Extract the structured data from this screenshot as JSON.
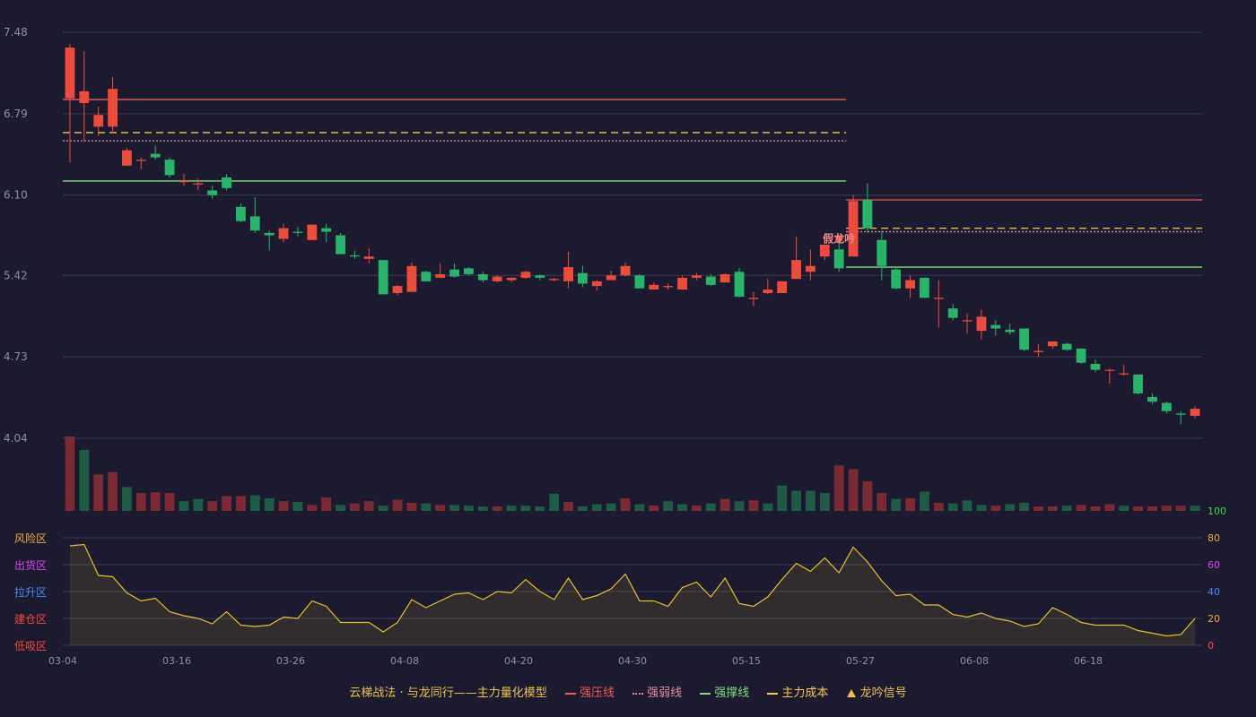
{
  "chart_data": {
    "type": "candlestick",
    "x_ticks": [
      "03-04",
      "03-16",
      "03-26",
      "04-08",
      "04-20",
      "04-30",
      "05-15",
      "05-27",
      "06-08",
      "06-18"
    ],
    "y_ticks": [
      "7.48",
      "6.79",
      "6.10",
      "5.42",
      "4.73",
      "4.04"
    ],
    "y_range": [
      4.04,
      7.48
    ],
    "colors": {
      "up": "#ef4b3c",
      "down": "#27b56b",
      "background": "#1b1a2e",
      "grid": "#3a3b52",
      "axis_text": "#8c8fa3",
      "line_yellow": "#e3c12f"
    },
    "candles": [
      {
        "o": 6.92,
        "h": 7.38,
        "l": 6.38,
        "c": 7.35
      },
      {
        "o": 6.88,
        "h": 7.32,
        "l": 6.55,
        "c": 6.98
      },
      {
        "o": 6.68,
        "h": 6.85,
        "l": 6.6,
        "c": 6.78
      },
      {
        "o": 6.68,
        "h": 7.1,
        "l": 6.62,
        "c": 7.0
      },
      {
        "o": 6.35,
        "h": 6.5,
        "l": 6.35,
        "c": 6.48
      },
      {
        "o": 6.39,
        "h": 6.42,
        "l": 6.32,
        "c": 6.4
      },
      {
        "o": 6.45,
        "h": 6.52,
        "l": 6.4,
        "c": 6.42
      },
      {
        "o": 6.4,
        "h": 6.42,
        "l": 6.25,
        "c": 6.27
      },
      {
        "o": 6.21,
        "h": 6.28,
        "l": 6.18,
        "c": 6.22
      },
      {
        "o": 6.19,
        "h": 6.24,
        "l": 6.14,
        "c": 6.2
      },
      {
        "o": 6.14,
        "h": 6.18,
        "l": 6.07,
        "c": 6.1
      },
      {
        "o": 6.25,
        "h": 6.28,
        "l": 6.14,
        "c": 6.16
      },
      {
        "o": 6.0,
        "h": 6.03,
        "l": 5.87,
        "c": 5.88
      },
      {
        "o": 5.92,
        "h": 6.08,
        "l": 5.78,
        "c": 5.8
      },
      {
        "o": 5.78,
        "h": 5.8,
        "l": 5.63,
        "c": 5.76
      },
      {
        "o": 5.73,
        "h": 5.86,
        "l": 5.7,
        "c": 5.82
      },
      {
        "o": 5.79,
        "h": 5.83,
        "l": 5.75,
        "c": 5.78
      },
      {
        "o": 5.72,
        "h": 5.85,
        "l": 5.72,
        "c": 5.85
      },
      {
        "o": 5.82,
        "h": 5.86,
        "l": 5.7,
        "c": 5.79
      },
      {
        "o": 5.76,
        "h": 5.78,
        "l": 5.6,
        "c": 5.6
      },
      {
        "o": 5.59,
        "h": 5.63,
        "l": 5.56,
        "c": 5.58
      },
      {
        "o": 5.56,
        "h": 5.65,
        "l": 5.52,
        "c": 5.58
      },
      {
        "o": 5.55,
        "h": 5.55,
        "l": 5.26,
        "c": 5.26
      },
      {
        "o": 5.27,
        "h": 5.34,
        "l": 5.25,
        "c": 5.33
      },
      {
        "o": 5.28,
        "h": 5.53,
        "l": 5.28,
        "c": 5.5
      },
      {
        "o": 5.45,
        "h": 5.46,
        "l": 5.37,
        "c": 5.37
      },
      {
        "o": 5.4,
        "h": 5.52,
        "l": 5.4,
        "c": 5.43
      },
      {
        "o": 5.47,
        "h": 5.52,
        "l": 5.4,
        "c": 5.41
      },
      {
        "o": 5.48,
        "h": 5.49,
        "l": 5.42,
        "c": 5.43
      },
      {
        "o": 5.43,
        "h": 5.45,
        "l": 5.36,
        "c": 5.38
      },
      {
        "o": 5.37,
        "h": 5.42,
        "l": 5.36,
        "c": 5.41
      },
      {
        "o": 5.38,
        "h": 5.4,
        "l": 5.36,
        "c": 5.4
      },
      {
        "o": 5.4,
        "h": 5.46,
        "l": 5.39,
        "c": 5.45
      },
      {
        "o": 5.42,
        "h": 5.43,
        "l": 5.38,
        "c": 5.4
      },
      {
        "o": 5.38,
        "h": 5.4,
        "l": 5.37,
        "c": 5.39
      },
      {
        "o": 5.37,
        "h": 5.62,
        "l": 5.31,
        "c": 5.49
      },
      {
        "o": 5.44,
        "h": 5.5,
        "l": 5.32,
        "c": 5.35
      },
      {
        "o": 5.33,
        "h": 5.38,
        "l": 5.29,
        "c": 5.37
      },
      {
        "o": 5.38,
        "h": 5.46,
        "l": 5.38,
        "c": 5.42
      },
      {
        "o": 5.42,
        "h": 5.53,
        "l": 5.41,
        "c": 5.5
      },
      {
        "o": 5.42,
        "h": 5.43,
        "l": 5.31,
        "c": 5.31
      },
      {
        "o": 5.3,
        "h": 5.36,
        "l": 5.3,
        "c": 5.34
      },
      {
        "o": 5.32,
        "h": 5.35,
        "l": 5.3,
        "c": 5.33
      },
      {
        "o": 5.3,
        "h": 5.42,
        "l": 5.3,
        "c": 5.4
      },
      {
        "o": 5.4,
        "h": 5.44,
        "l": 5.38,
        "c": 5.42
      },
      {
        "o": 5.41,
        "h": 5.43,
        "l": 5.33,
        "c": 5.34
      },
      {
        "o": 5.36,
        "h": 5.44,
        "l": 5.36,
        "c": 5.43
      },
      {
        "o": 5.45,
        "h": 5.48,
        "l": 5.23,
        "c": 5.24
      },
      {
        "o": 5.22,
        "h": 5.28,
        "l": 5.16,
        "c": 5.23
      },
      {
        "o": 5.27,
        "h": 5.39,
        "l": 5.26,
        "c": 5.3
      },
      {
        "o": 5.27,
        "h": 5.37,
        "l": 5.27,
        "c": 5.37
      },
      {
        "o": 5.39,
        "h": 5.75,
        "l": 5.39,
        "c": 5.55
      },
      {
        "o": 5.45,
        "h": 5.64,
        "l": 5.38,
        "c": 5.5
      },
      {
        "o": 5.58,
        "h": 5.68,
        "l": 5.55,
        "c": 5.68
      },
      {
        "o": 5.64,
        "h": 5.7,
        "l": 5.45,
        "c": 5.48
      },
      {
        "o": 5.58,
        "h": 6.1,
        "l": 5.58,
        "c": 6.05
      },
      {
        "o": 6.06,
        "h": 6.2,
        "l": 5.78,
        "c": 5.82
      },
      {
        "o": 5.72,
        "h": 5.8,
        "l": 5.38,
        "c": 5.5
      },
      {
        "o": 5.47,
        "h": 5.5,
        "l": 5.3,
        "c": 5.31
      },
      {
        "o": 5.31,
        "h": 5.42,
        "l": 5.23,
        "c": 5.38
      },
      {
        "o": 5.4,
        "h": 5.4,
        "l": 5.23,
        "c": 5.23
      },
      {
        "o": 5.23,
        "h": 5.38,
        "l": 4.98,
        "c": 5.23
      },
      {
        "o": 5.14,
        "h": 5.18,
        "l": 5.04,
        "c": 5.06
      },
      {
        "o": 5.04,
        "h": 5.1,
        "l": 4.93,
        "c": 5.04
      },
      {
        "o": 4.95,
        "h": 5.13,
        "l": 4.88,
        "c": 5.07
      },
      {
        "o": 5.0,
        "h": 5.04,
        "l": 4.91,
        "c": 4.97
      },
      {
        "o": 4.96,
        "h": 5.01,
        "l": 4.92,
        "c": 4.94
      },
      {
        "o": 4.97,
        "h": 4.97,
        "l": 4.78,
        "c": 4.79
      },
      {
        "o": 4.77,
        "h": 4.84,
        "l": 4.73,
        "c": 4.78
      },
      {
        "o": 4.82,
        "h": 4.86,
        "l": 4.8,
        "c": 4.86
      },
      {
        "o": 4.84,
        "h": 4.85,
        "l": 4.78,
        "c": 4.79
      },
      {
        "o": 4.8,
        "h": 4.8,
        "l": 4.67,
        "c": 4.68
      },
      {
        "o": 4.67,
        "h": 4.71,
        "l": 4.6,
        "c": 4.62
      },
      {
        "o": 4.62,
        "h": 4.63,
        "l": 4.5,
        "c": 4.62
      },
      {
        "o": 4.58,
        "h": 4.66,
        "l": 4.57,
        "c": 4.59
      },
      {
        "o": 4.58,
        "h": 4.58,
        "l": 4.41,
        "c": 4.42
      },
      {
        "o": 4.39,
        "h": 4.42,
        "l": 4.33,
        "c": 4.35
      },
      {
        "o": 4.34,
        "h": 4.35,
        "l": 4.25,
        "c": 4.27
      },
      {
        "o": 4.25,
        "h": 4.27,
        "l": 4.16,
        "c": 4.24
      },
      {
        "o": 4.23,
        "h": 4.31,
        "l": 4.21,
        "c": 4.29
      }
    ],
    "volume": [
      100,
      82,
      49,
      52,
      32,
      24,
      25,
      24,
      13,
      16,
      13,
      20,
      20,
      21,
      17,
      13,
      12,
      8,
      18,
      8,
      10,
      13,
      7,
      15,
      11,
      10,
      8,
      8,
      7,
      6,
      6,
      7,
      7,
      6,
      23,
      12,
      6,
      9,
      10,
      17,
      9,
      7,
      13,
      9,
      7,
      10,
      16,
      13,
      14,
      10,
      34,
      27,
      27,
      24,
      61,
      56,
      40,
      24,
      16,
      17,
      26,
      11,
      10,
      14,
      8,
      7,
      9,
      11,
      6,
      6,
      7,
      8,
      6,
      9,
      7,
      6,
      6,
      7,
      7,
      7
    ],
    "volume_colors": [
      "r",
      "g",
      "r",
      "r",
      "g",
      "r",
      "r",
      "r",
      "g",
      "g",
      "r",
      "r",
      "r",
      "g",
      "g",
      "r",
      "g",
      "r",
      "r",
      "g",
      "r",
      "r",
      "g",
      "r",
      "r",
      "g",
      "r",
      "g",
      "g",
      "g",
      "r",
      "g",
      "g",
      "g",
      "g",
      "r",
      "g",
      "g",
      "g",
      "r",
      "g",
      "r",
      "g",
      "g",
      "r",
      "g",
      "r",
      "g",
      "r",
      "g",
      "g",
      "g",
      "g",
      "g",
      "r",
      "r",
      "r",
      "r",
      "g",
      "r",
      "g",
      "r",
      "g",
      "g",
      "g",
      "r",
      "g",
      "g",
      "r",
      "r",
      "g",
      "r",
      "r",
      "r",
      "g",
      "r",
      "r",
      "r",
      "r",
      "g"
    ],
    "overlays": [
      {
        "name": "强压线",
        "color": "#ef5b5b",
        "style": "solid",
        "value": 6.91,
        "from": 0,
        "to": 54
      },
      {
        "name": "主力成本",
        "color": "#f2c94c",
        "style": "dashed",
        "value": 6.63,
        "from": 0,
        "to": 54
      },
      {
        "name": "强弱线",
        "color": "#e38d9e",
        "style": "dotted",
        "value": 6.56,
        "from": 0,
        "to": 54
      },
      {
        "name": "强撑线",
        "color": "#7dde7c",
        "style": "solid",
        "value": 6.22,
        "from": 0,
        "to": 54
      },
      {
        "name": "强压线",
        "color": "#ef5b5b",
        "style": "solid",
        "value": 6.06,
        "from": 55,
        "to": 79
      },
      {
        "name": "主力成本",
        "color": "#f2c94c",
        "style": "dashed",
        "value": 5.82,
        "from": 55,
        "to": 79
      },
      {
        "name": "强弱线",
        "color": "#e38d9e",
        "style": "dotted",
        "value": 5.79,
        "from": 55,
        "to": 79
      },
      {
        "name": "强撑线",
        "color": "#7dde7c",
        "style": "solid",
        "value": 5.49,
        "from": 55,
        "to": 79
      }
    ],
    "signal": {
      "index": 54,
      "label": "假龙吟"
    },
    "indicator": {
      "y_range": [
        0,
        100
      ],
      "y_ticks": [
        "100",
        "80",
        "60",
        "40",
        "20",
        "0"
      ],
      "tick_colors": [
        "#31d843",
        "#f2a93b",
        "#e040fb",
        "#4d8bf0",
        "#f2a93b",
        "#ef4b3c"
      ],
      "zone_labels": [
        {
          "text": "风险区",
          "color": "#f2a93b"
        },
        {
          "text": "出货区",
          "color": "#e040fb"
        },
        {
          "text": "拉升区",
          "color": "#4d8bf0"
        },
        {
          "text": "建仓区",
          "color": "#ef4b3c"
        },
        {
          "text": "低吸区",
          "color": "#ef4b3c"
        }
      ],
      "values": [
        74,
        75,
        52,
        51,
        39,
        33,
        35,
        25,
        22,
        20,
        16,
        25,
        15,
        14,
        15,
        21,
        20,
        33,
        29,
        17,
        17,
        17,
        10,
        17,
        34,
        28,
        33,
        38,
        39,
        34,
        40,
        39,
        49,
        40,
        34,
        50,
        34,
        37,
        42,
        53,
        33,
        33,
        29,
        43,
        47,
        36,
        50,
        31,
        29,
        36,
        49,
        61,
        55,
        65,
        54,
        73,
        62,
        48,
        37,
        38,
        30,
        30,
        23,
        21,
        24,
        20,
        18,
        14,
        16,
        28,
        23,
        17,
        15,
        15,
        15,
        11,
        9,
        7,
        8,
        20
      ]
    },
    "legend": [
      {
        "label": "云梯战法 · 与龙同行——主力量化模型",
        "kind": "title"
      },
      {
        "label": "强压线",
        "kind": "line",
        "color": "#ef5b5b",
        "style": "solid"
      },
      {
        "label": "强弱线",
        "kind": "line",
        "color": "#e38d9e",
        "style": "dotted"
      },
      {
        "label": "强撑线",
        "kind": "line",
        "color": "#7dde7c",
        "style": "solid"
      },
      {
        "label": "主力成本",
        "kind": "line",
        "color": "#f2c94c",
        "style": "dashed"
      },
      {
        "label": "龙吟信号",
        "kind": "triangle",
        "color": "#e8c34a"
      }
    ]
  }
}
